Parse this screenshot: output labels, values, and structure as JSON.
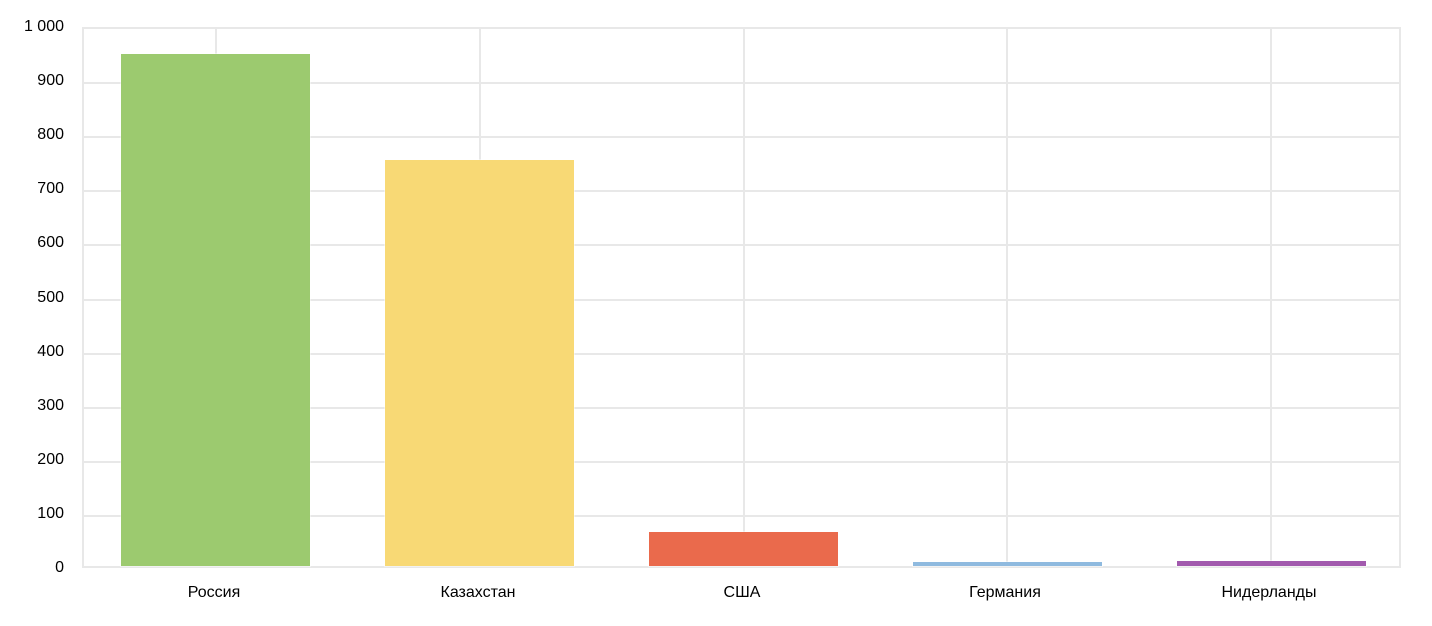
{
  "chart_data": {
    "type": "bar",
    "title": "",
    "xlabel": "",
    "ylabel": "",
    "categories": [
      "Россия",
      "Казахстан",
      "США",
      "Германия",
      "Нидерланды"
    ],
    "values": [
      947,
      751,
      62,
      8,
      9
    ],
    "bar_colors": [
      "#9cca6f",
      "#f8d975",
      "#ea6a4c",
      "#8fbadf",
      "#a25aae"
    ],
    "ylim": [
      0,
      1000
    ],
    "y_tick_step": 100,
    "y_tick_labels": [
      "0",
      "100",
      "200",
      "300",
      "400",
      "500",
      "600",
      "700",
      "800",
      "900",
      "1 000"
    ],
    "grid": true,
    "gridline_color": "#e8e8e8",
    "axis_text_color": "#000000",
    "plot_background": "#ffffff",
    "legend_position": "none"
  }
}
